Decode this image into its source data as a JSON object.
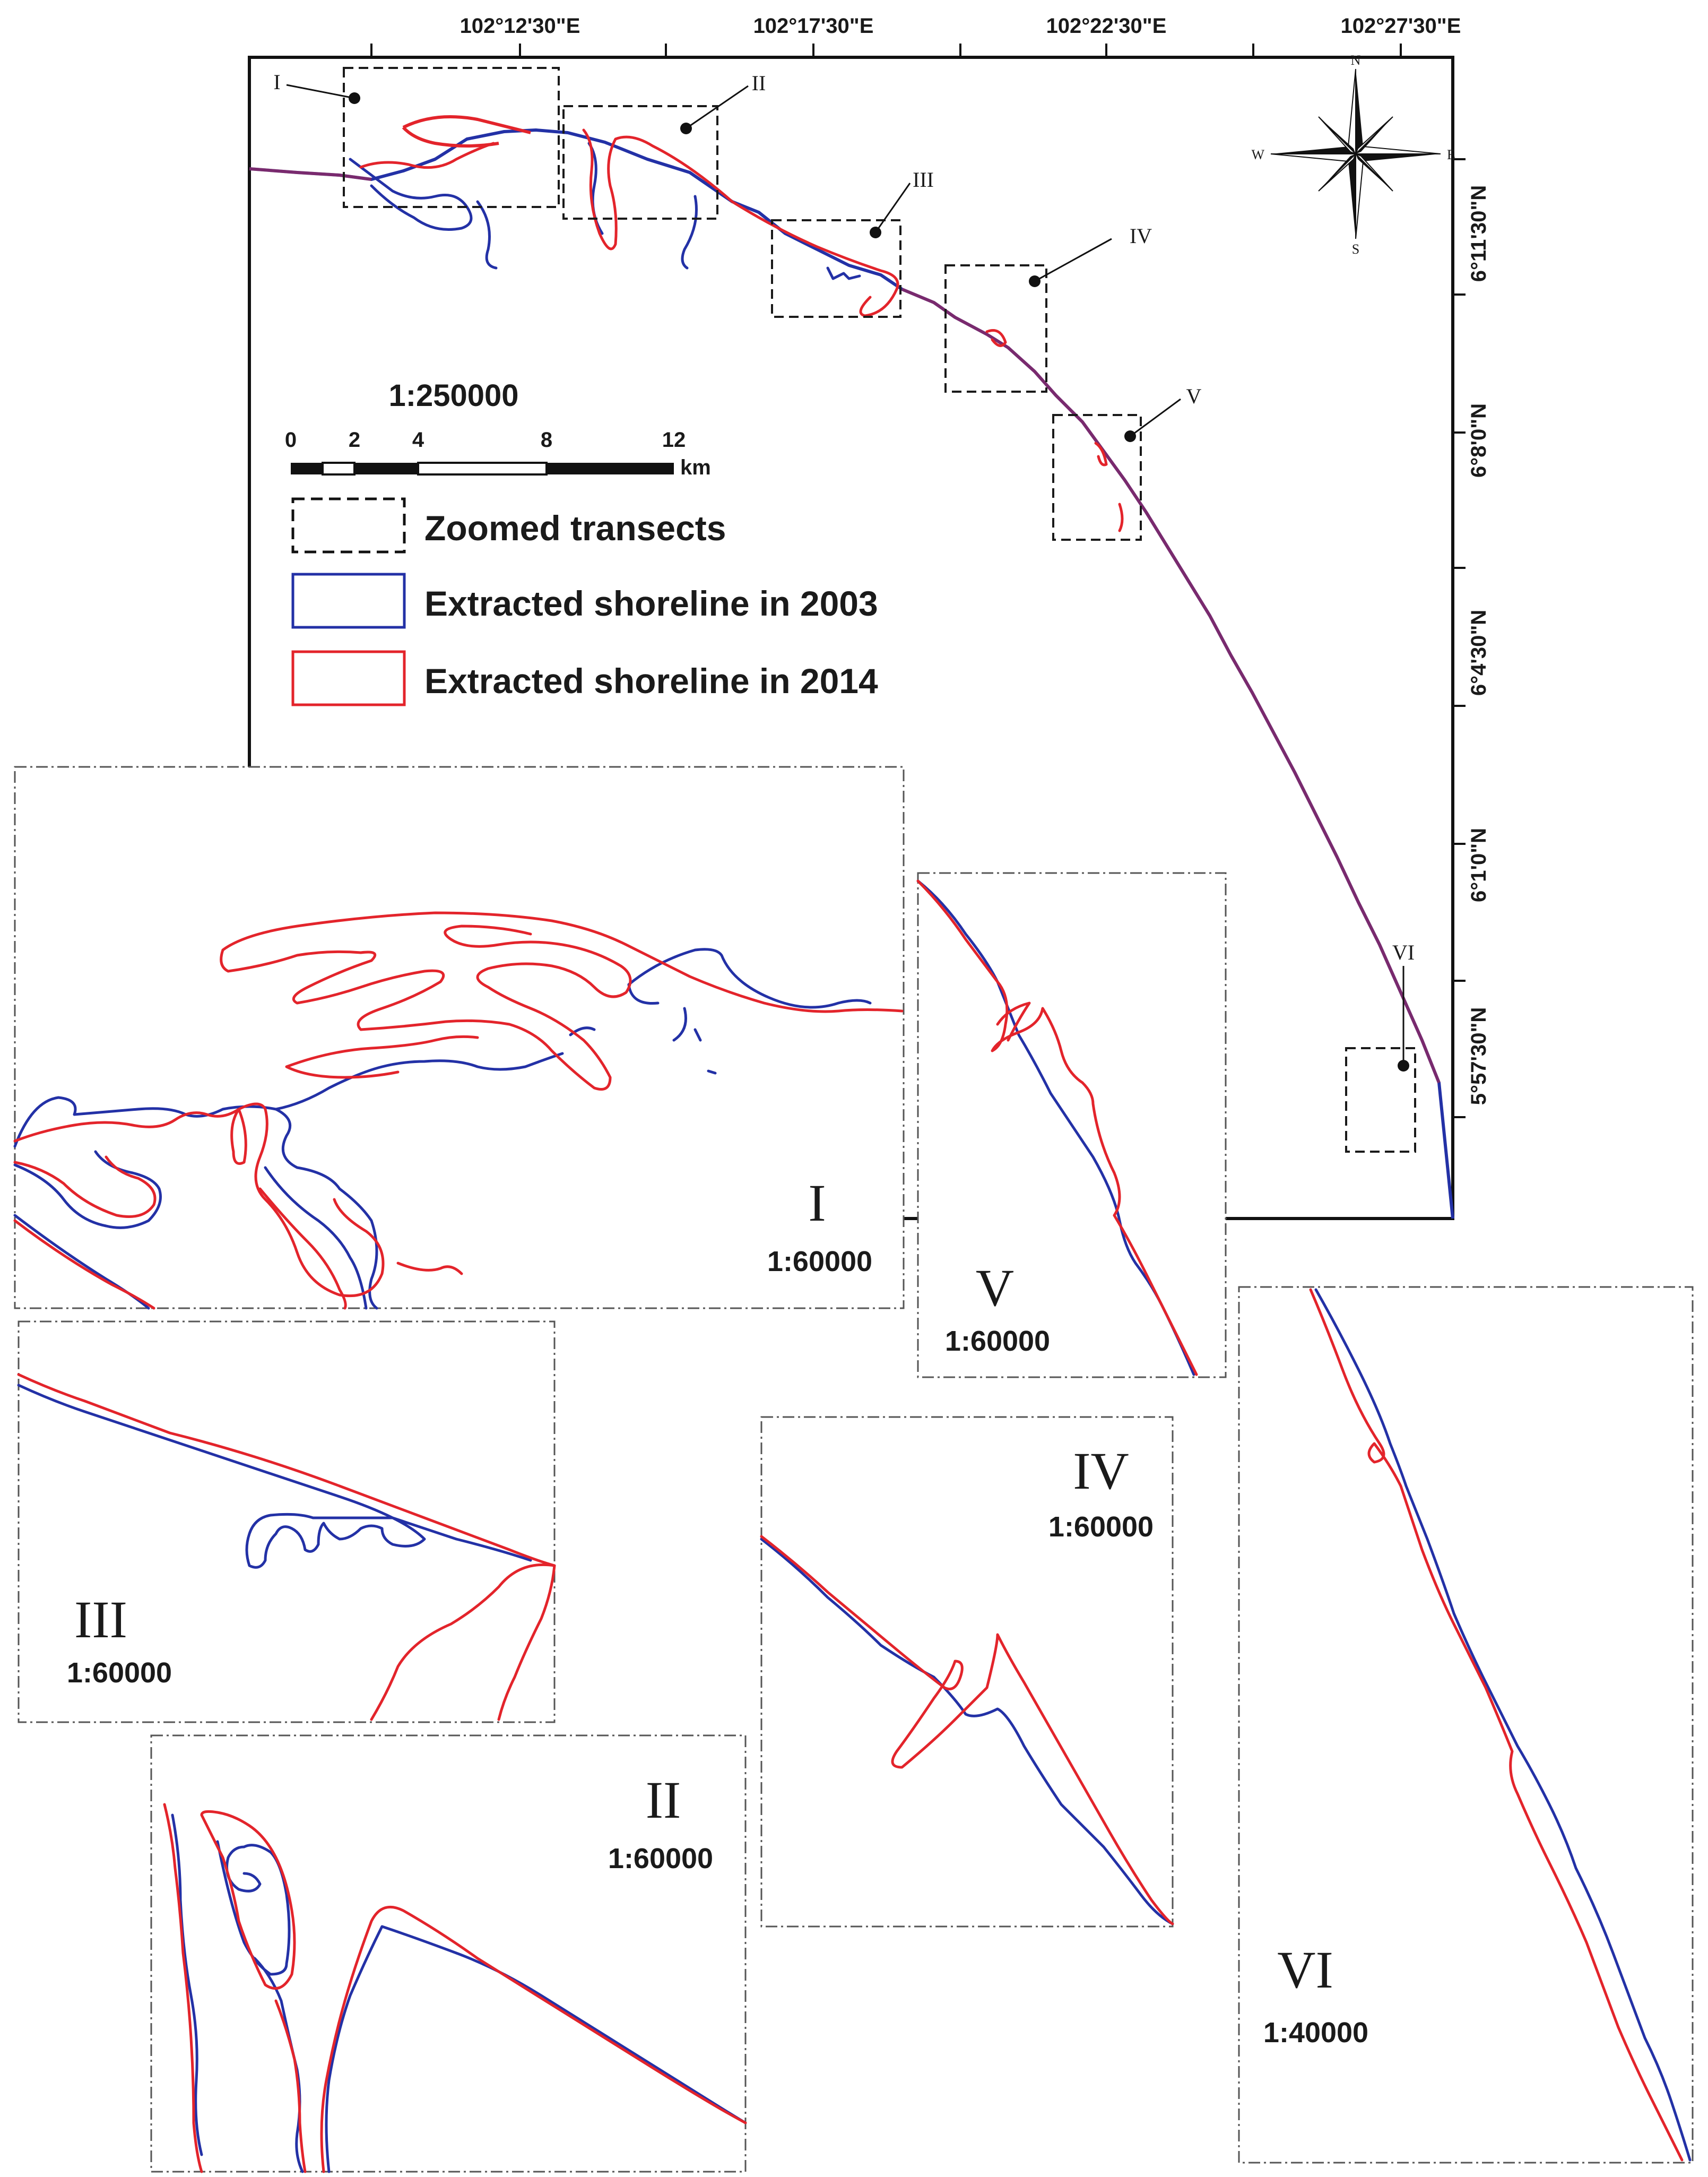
{
  "map": {
    "lon_labels": [
      "102°12'30\"E",
      "102°17'30\"E",
      "102°22'30\"E",
      "102°27'30\"E"
    ],
    "lat_labels": [
      "6°11'30\"N",
      "6°8'0\"N",
      "6°4'30\"N",
      "6°1'0\"N",
      "5°57'30\"N"
    ],
    "compass": {
      "n": "N",
      "s": "S",
      "e": "E",
      "w": "W"
    },
    "callouts": [
      "I",
      "II",
      "III",
      "IV",
      "V",
      "VI"
    ]
  },
  "scalebar": {
    "ratio": "1:250000",
    "ticks": [
      "0",
      "2",
      "4",
      "8",
      "12"
    ],
    "unit": "km"
  },
  "legend": {
    "zoom": "Zoomed transects",
    "y2003": "Extracted shoreline in 2003",
    "y2014": "Extracted shoreline in 2014"
  },
  "colors": {
    "shoreline_2003": "#2331a6",
    "shoreline_2014": "#e3242b"
  },
  "panels": {
    "p1": {
      "id": "I",
      "scale": "1:60000"
    },
    "p2": {
      "id": "II",
      "scale": "1:60000"
    },
    "p3": {
      "id": "III",
      "scale": "1:60000"
    },
    "p4": {
      "id": "IV",
      "scale": "1:60000"
    },
    "p5": {
      "id": "V",
      "scale": "1:60000"
    },
    "p6": {
      "id": "VI",
      "scale": "1:40000"
    }
  }
}
